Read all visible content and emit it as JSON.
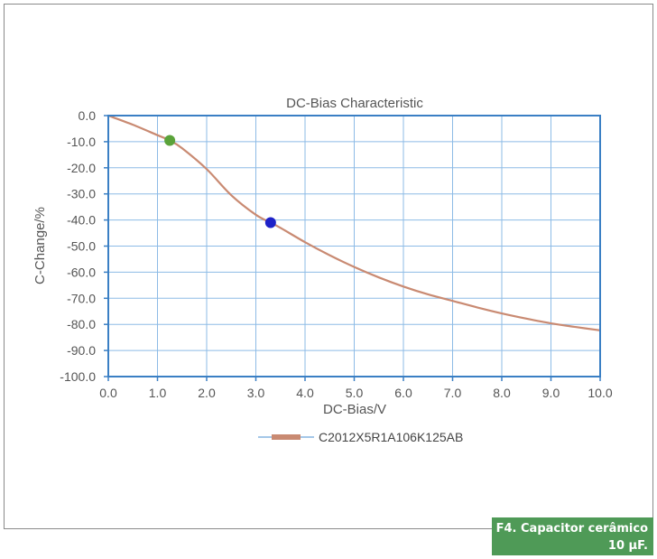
{
  "chart_data": {
    "type": "line",
    "title": "DC-Bias Characteristic",
    "xlabel": "DC-Bias/V",
    "ylabel": "C-Change/%",
    "xlim": [
      0,
      10
    ],
    "ylim": [
      -100,
      0
    ],
    "x_ticks": [
      "0.0",
      "1.0",
      "2.0",
      "3.0",
      "4.0",
      "5.0",
      "6.0",
      "7.0",
      "8.0",
      "9.0",
      "10.0"
    ],
    "y_ticks": [
      "0.0",
      "-10.0",
      "-20.0",
      "-30.0",
      "-40.0",
      "-50.0",
      "-60.0",
      "-70.0",
      "-80.0",
      "-90.0",
      "-100.0"
    ],
    "grid": true,
    "legend_position": "bottom-center",
    "series": [
      {
        "name": "C2012X5R1A106K125AB",
        "color": "#c98a72",
        "x": [
          0,
          0.5,
          1.0,
          1.25,
          1.5,
          2.0,
          2.5,
          3.0,
          3.3,
          3.5,
          4.0,
          4.5,
          5.0,
          5.5,
          6.0,
          6.5,
          7.0,
          7.5,
          8.0,
          8.5,
          9.0,
          9.5,
          10.0
        ],
        "y": [
          0,
          -3.5,
          -7.5,
          -9.5,
          -12.5,
          -20.5,
          -30.5,
          -38,
          -41,
          -43,
          -48.5,
          -53.5,
          -58,
          -62,
          -65.5,
          -68.5,
          -71,
          -73.5,
          -75.8,
          -77.8,
          -79.6,
          -81,
          -82.3
        ]
      }
    ],
    "markers": [
      {
        "x": 1.25,
        "y": -9.5,
        "color": "#5aa33a"
      },
      {
        "x": 3.3,
        "y": -41,
        "color": "#1e22c8"
      }
    ]
  },
  "caption": {
    "line1": "F4. Capacitor cerâmico",
    "line2": "10 μF."
  }
}
